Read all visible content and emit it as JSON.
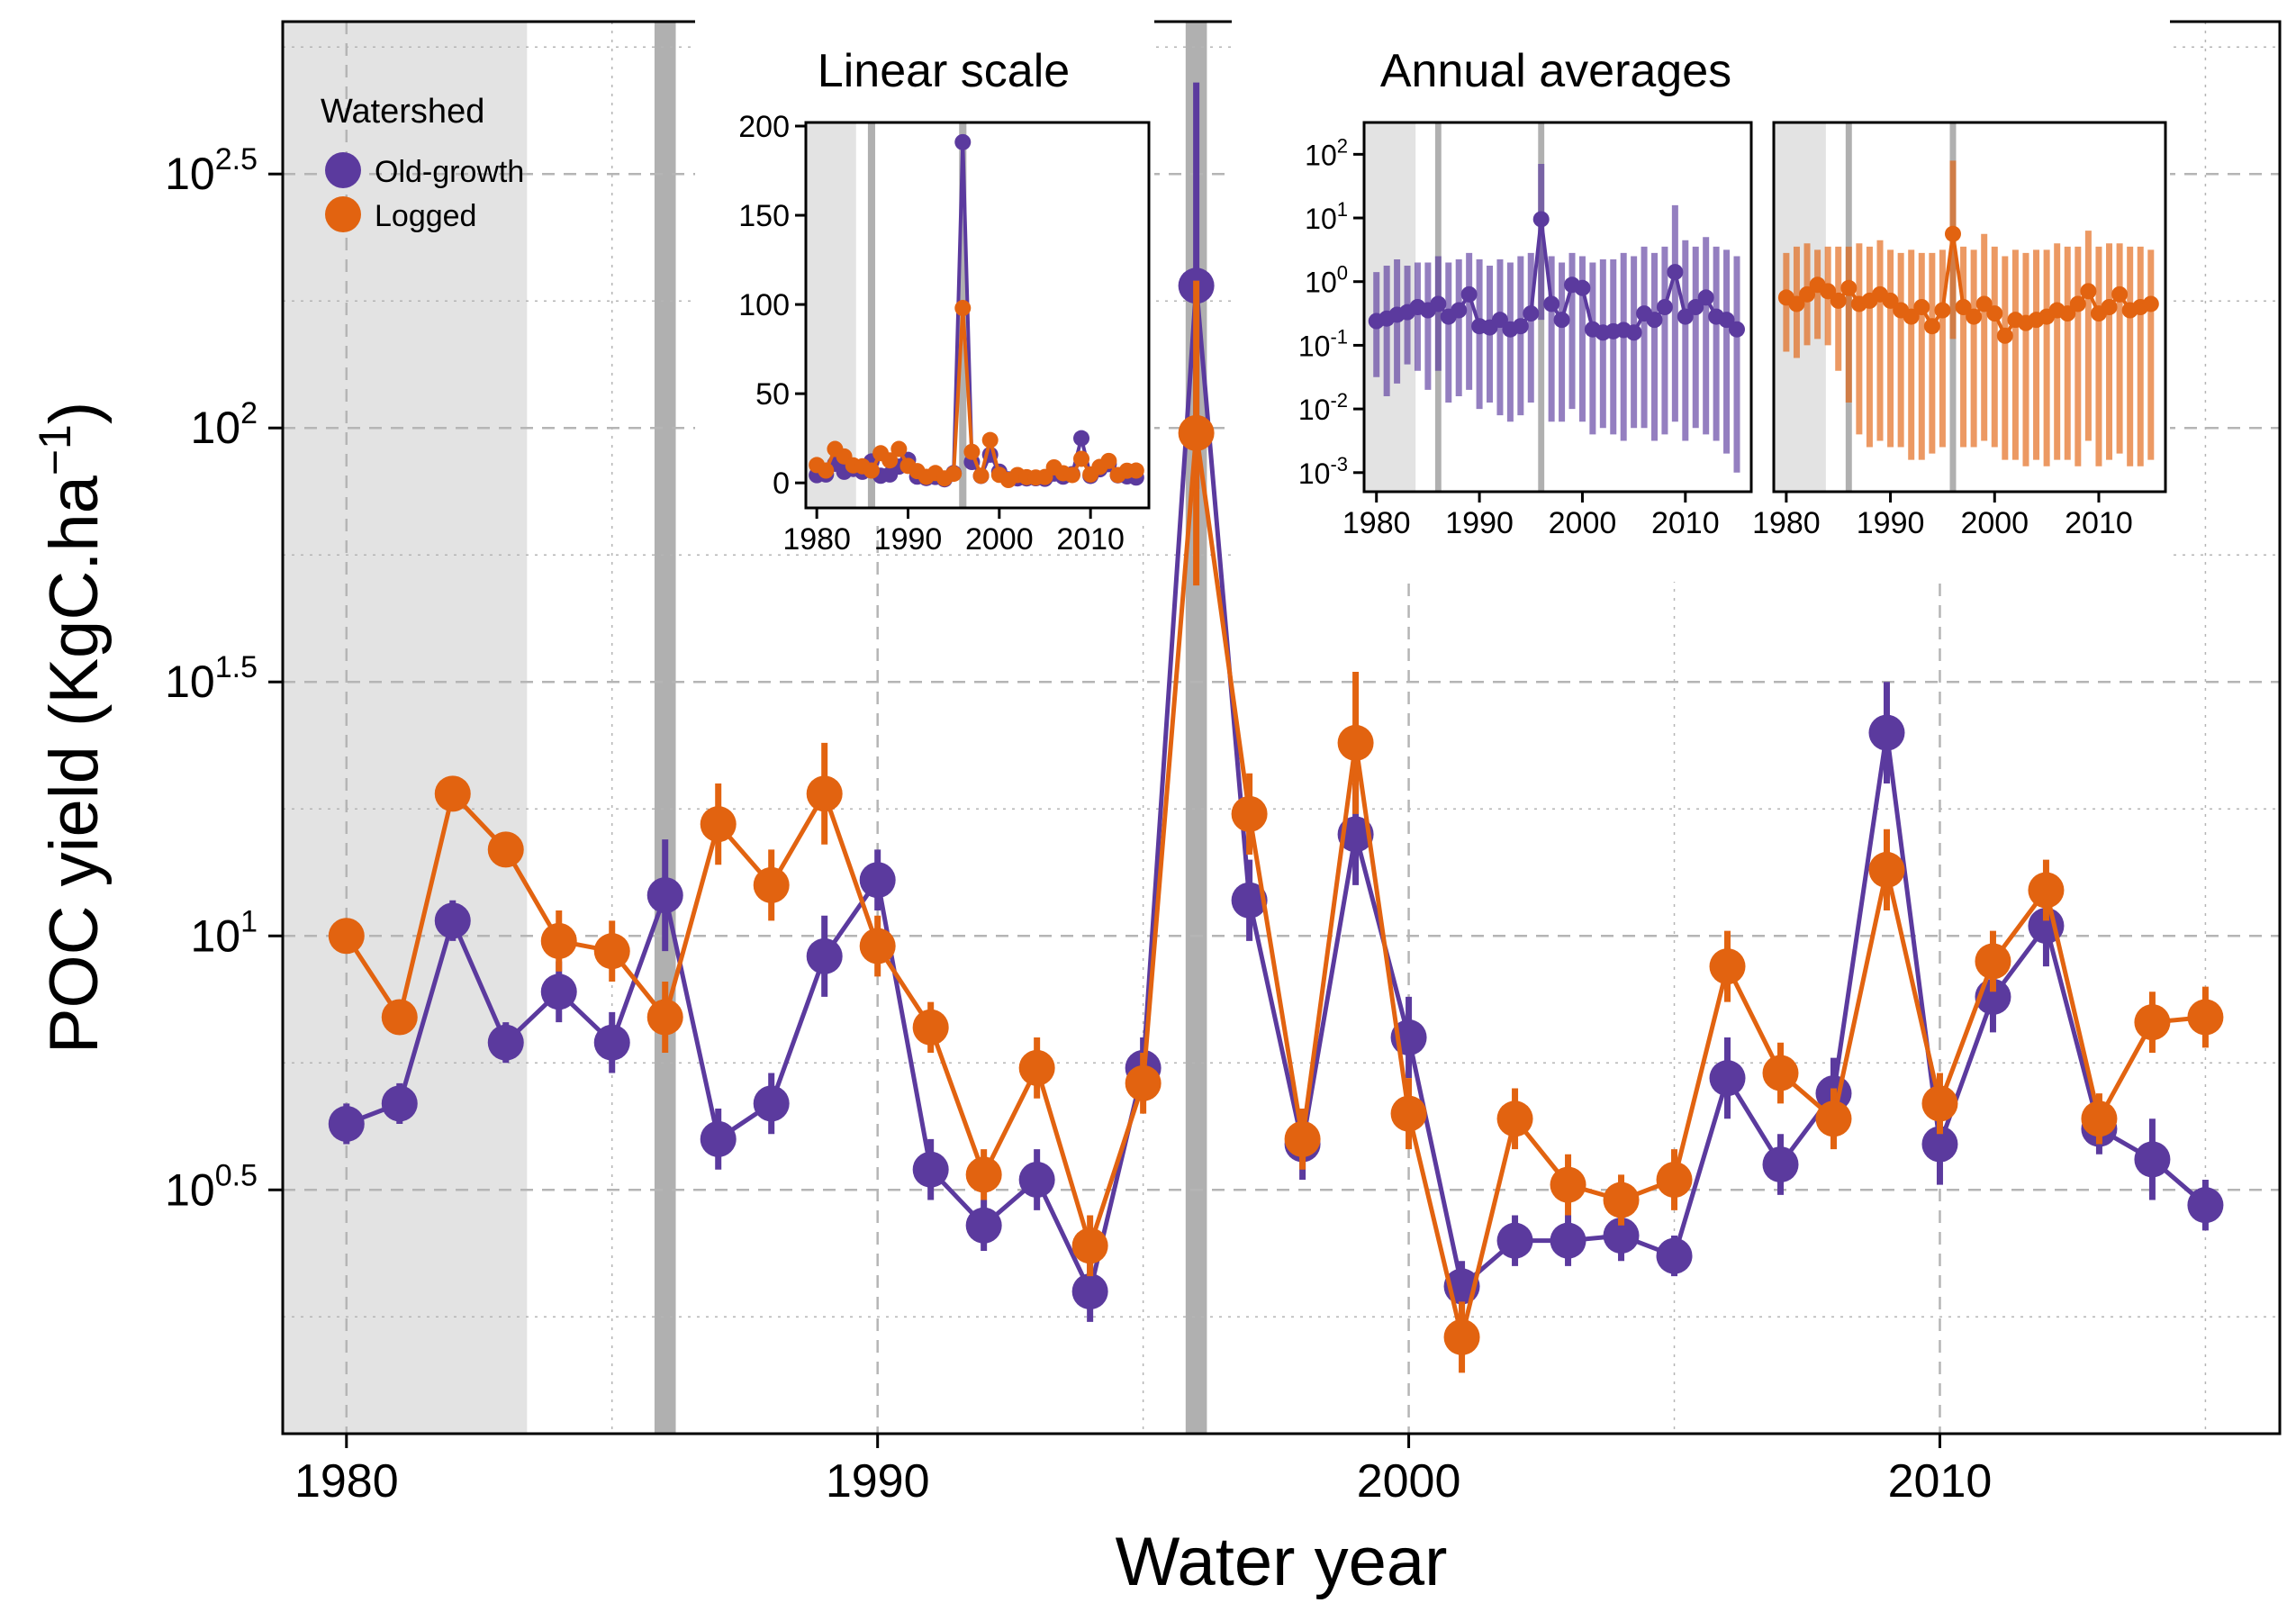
{
  "colors": {
    "old_growth": "#5B3A9E",
    "logged": "#E26310",
    "shade_light": "#E3E3E3",
    "shade_dark": "#B0B0B0",
    "grid": "#B5B5B5"
  },
  "legend": {
    "title": "Watershed",
    "entries": [
      "Old-growth",
      "Logged"
    ]
  },
  "chart_data": [
    {
      "id": "main",
      "type": "line",
      "scale": "log10",
      "xlabel": "Water year",
      "ylabel": "POC yield (KgC.ha",
      "ylabel_sup": "−1",
      "ylabel_close": ")",
      "xlim": [
        1978.8,
        2016.4
      ],
      "ylim": [
        0.02,
        2.8
      ],
      "xticks": [
        1980,
        1990,
        2000,
        2010
      ],
      "xtick_labels": [
        "1980",
        "1990",
        "2000",
        "2010"
      ],
      "yticks": [
        0.5,
        1,
        1.5,
        2,
        2.5
      ],
      "ytick_labels": [
        {
          "base": "10",
          "exp": "0.5"
        },
        {
          "base": "10",
          "exp": "1"
        },
        {
          "base": "10",
          "exp": "1.5"
        },
        {
          "base": "10",
          "exp": "2"
        },
        {
          "base": "10",
          "exp": "2.5"
        }
      ],
      "shaded_ranges": [
        {
          "from": 1978.8,
          "to": 1983.4,
          "tone": "light"
        },
        {
          "from": 1985.8,
          "to": 1986.2,
          "tone": "dark"
        },
        {
          "from": 1995.8,
          "to": 1996.2,
          "tone": "dark"
        }
      ],
      "x": [
        1980,
        1981,
        1982,
        1983,
        1984,
        1985,
        1986,
        1987,
        1988,
        1989,
        1990,
        1991,
        1992,
        1993,
        1994,
        1995,
        1996,
        1997,
        1998,
        1999,
        2000,
        2001,
        2002,
        2003,
        2004,
        2005,
        2006,
        2007,
        2008,
        2009,
        2010,
        2011,
        2012,
        2013,
        2014,
        2015
      ],
      "series": [
        {
          "name": "Old-growth",
          "values": [
            0.63,
            0.67,
            1.03,
            0.79,
            0.89,
            0.79,
            1.08,
            0.6,
            0.67,
            0.96,
            1.11,
            0.54,
            0.43,
            0.52,
            0.3,
            0.74,
            2.28,
            1.07,
            0.59,
            1.2,
            0.8,
            0.31,
            0.4,
            0.4,
            0.41,
            0.37,
            0.72,
            0.55,
            0.69,
            1.4,
            0.59,
            0.88,
            1.02,
            0.62,
            0.56,
            0.47
          ],
          "err": [
            0.04,
            0.04,
            0.04,
            0.04,
            0.06,
            0.06,
            0.11,
            0.06,
            0.06,
            0.08,
            0.06,
            0.06,
            0.05,
            0.06,
            0.06,
            0.06,
            0.4,
            0.08,
            0.07,
            0.1,
            0.08,
            0.05,
            0.05,
            0.05,
            0.05,
            0.04,
            0.08,
            0.06,
            0.07,
            0.1,
            0.08,
            0.07,
            0.08,
            0.05,
            0.08,
            0.05
          ]
        },
        {
          "name": "Logged",
          "values": [
            1.0,
            0.84,
            1.28,
            1.17,
            0.99,
            0.97,
            0.84,
            1.22,
            1.1,
            1.28,
            0.98,
            0.82,
            0.53,
            0.74,
            0.39,
            0.71,
            1.99,
            1.24,
            0.6,
            1.38,
            0.65,
            0.21,
            0.64,
            0.51,
            0.48,
            0.52,
            0.94,
            0.73,
            0.64,
            1.13,
            0.67,
            0.95,
            1.09,
            0.64,
            0.83,
            0.84
          ],
          "err": [
            0.02,
            0.02,
            0.03,
            0.03,
            0.06,
            0.06,
            0.07,
            0.08,
            0.07,
            0.1,
            0.06,
            0.05,
            0.05,
            0.06,
            0.06,
            0.06,
            0.3,
            0.08,
            0.06,
            0.14,
            0.07,
            0.07,
            0.06,
            0.06,
            0.05,
            0.06,
            0.07,
            0.06,
            0.06,
            0.08,
            0.06,
            0.06,
            0.06,
            0.05,
            0.06,
            0.06
          ]
        }
      ]
    },
    {
      "id": "inset_linear",
      "type": "line",
      "title": "Linear scale",
      "scale": "linear",
      "xlim": [
        1978.8,
        2016.4
      ],
      "ylim": [
        -10,
        200
      ],
      "xticks": [
        1980,
        1990,
        2000,
        2010
      ],
      "xtick_labels": [
        "1980",
        "1990",
        "2000",
        "2010"
      ],
      "yticks": [
        0,
        50,
        100,
        150,
        200
      ],
      "ytick_labels": [
        "0",
        "50",
        "100",
        "150",
        "200"
      ],
      "shaded_ranges": [
        {
          "from": 1978.8,
          "to": 1984.3,
          "tone": "light"
        },
        {
          "from": 1985.6,
          "to": 1986.4,
          "tone": "dark"
        },
        {
          "from": 1995.6,
          "to": 1996.4,
          "tone": "dark"
        }
      ],
      "x": [
        1980,
        1981,
        1982,
        1983,
        1984,
        1985,
        1986,
        1987,
        1988,
        1989,
        1990,
        1991,
        1992,
        1993,
        1994,
        1995,
        1996,
        1997,
        1998,
        1999,
        2000,
        2001,
        2002,
        2003,
        2004,
        2005,
        2006,
        2007,
        2008,
        2009,
        2010,
        2011,
        2012,
        2013,
        2014,
        2015
      ],
      "series": [
        {
          "name": "Old-growth",
          "values": [
            4.3,
            4.7,
            10.7,
            6.2,
            7.8,
            6.2,
            12,
            4,
            4.7,
            9.1,
            12.9,
            3.5,
            2.7,
            3.3,
            2,
            5.5,
            191,
            11.7,
            3.9,
            15.8,
            6.3,
            2,
            2.5,
            2.5,
            2.6,
            2.3,
            5.2,
            3.5,
            4.9,
            25,
            3.9,
            7.6,
            10.5,
            4.2,
            3.6,
            3
          ]
        },
        {
          "name": "Logged",
          "values": [
            10,
            6.9,
            19,
            14.8,
            9.8,
            9.3,
            6.9,
            16.6,
            12.6,
            19,
            9.5,
            6.6,
            3.4,
            5.5,
            2.5,
            5.1,
            98,
            17.4,
            4,
            24,
            4.5,
            1.6,
            4.4,
            3.2,
            3,
            3.3,
            8.7,
            5.4,
            4.4,
            13.5,
            4.7,
            8.9,
            12.3,
            4.4,
            6.8,
            6.9
          ]
        }
      ]
    },
    {
      "id": "inset_annual_old_growth",
      "type": "line",
      "title": "Annual averages",
      "scale": "log10",
      "xlim": [
        1978.8,
        2016.4
      ],
      "ylim": [
        -3.3,
        2.5
      ],
      "xticks": [
        1980,
        1990,
        2000,
        2010
      ],
      "xtick_labels": [
        "1980",
        "1990",
        "2000",
        "2010"
      ],
      "yticks": [
        -3,
        -2,
        -1,
        0,
        1,
        2
      ],
      "ytick_labels": [
        {
          "base": "10",
          "exp": "-3"
        },
        {
          "base": "10",
          "exp": "-2"
        },
        {
          "base": "10",
          "exp": "-1"
        },
        {
          "base": "10",
          "exp": "0"
        },
        {
          "base": "10",
          "exp": "1"
        },
        {
          "base": "10",
          "exp": "2"
        }
      ],
      "shaded_ranges": [
        {
          "from": 1978.8,
          "to": 1983.8,
          "tone": "light"
        },
        {
          "from": 1985.7,
          "to": 1986.3,
          "tone": "dark"
        },
        {
          "from": 1995.7,
          "to": 1996.3,
          "tone": "dark"
        }
      ],
      "x": [
        1980,
        1981,
        1982,
        1983,
        1984,
        1985,
        1986,
        1987,
        1988,
        1989,
        1990,
        1991,
        1992,
        1993,
        1994,
        1995,
        1996,
        1997,
        1998,
        1999,
        2000,
        2001,
        2002,
        2003,
        2004,
        2005,
        2006,
        2007,
        2008,
        2009,
        2010,
        2011,
        2012,
        2013,
        2014,
        2015
      ],
      "series": [
        {
          "name": "Old-growth",
          "values": [
            -0.62,
            -0.58,
            -0.52,
            -0.48,
            -0.4,
            -0.45,
            -0.35,
            -0.55,
            -0.45,
            -0.2,
            -0.7,
            -0.72,
            -0.6,
            -0.75,
            -0.7,
            -0.5,
            0.98,
            -0.35,
            -0.6,
            -0.05,
            -0.1,
            -0.75,
            -0.8,
            -0.78,
            -0.76,
            -0.8,
            -0.5,
            -0.6,
            -0.4,
            0.15,
            -0.55,
            -0.4,
            -0.25,
            -0.55,
            -0.6,
            -0.75
          ],
          "lower": [
            -1.5,
            -1.8,
            -1.6,
            -1.3,
            -1.4,
            -1.7,
            -1.4,
            -1.9,
            -1.8,
            -1.7,
            -2.0,
            -1.9,
            -2.1,
            -2.2,
            -2.1,
            -1.9,
            -0.6,
            -2.2,
            -2.2,
            -2.0,
            -2.2,
            -2.4,
            -2.3,
            -2.4,
            -2.5,
            -2.3,
            -2.3,
            -2.5,
            -2.4,
            -2.2,
            -2.5,
            -2.3,
            -2.4,
            -2.5,
            -2.7,
            -3.0
          ],
          "upper": [
            0.15,
            0.25,
            0.35,
            0.25,
            0.3,
            0.3,
            0.4,
            0.3,
            0.35,
            0.45,
            0.35,
            0.25,
            0.35,
            0.3,
            0.4,
            0.45,
            1.85,
            0.4,
            0.3,
            0.45,
            0.4,
            0.3,
            0.35,
            0.35,
            0.45,
            0.4,
            0.55,
            0.45,
            0.55,
            1.2,
            0.65,
            0.55,
            0.7,
            0.55,
            0.5,
            0.4
          ]
        }
      ]
    },
    {
      "id": "inset_annual_logged",
      "type": "line",
      "scale": "log10",
      "xlim": [
        1978.8,
        2016.4
      ],
      "ylim": [
        -3.3,
        2.5
      ],
      "xticks": [
        1980,
        1990,
        2000,
        2010
      ],
      "xtick_labels": [
        "1980",
        "1990",
        "2000",
        "2010"
      ],
      "shaded_ranges": [
        {
          "from": 1978.8,
          "to": 1983.8,
          "tone": "light"
        },
        {
          "from": 1985.7,
          "to": 1986.3,
          "tone": "dark"
        },
        {
          "from": 1995.7,
          "to": 1996.3,
          "tone": "dark"
        }
      ],
      "x": [
        1980,
        1981,
        1982,
        1983,
        1984,
        1985,
        1986,
        1987,
        1988,
        1989,
        1990,
        1991,
        1992,
        1993,
        1994,
        1995,
        1996,
        1997,
        1998,
        1999,
        2000,
        2001,
        2002,
        2003,
        2004,
        2005,
        2006,
        2007,
        2008,
        2009,
        2010,
        2011,
        2012,
        2013,
        2014,
        2015
      ],
      "series": [
        {
          "name": "Logged",
          "values": [
            -0.25,
            -0.35,
            -0.2,
            -0.05,
            -0.15,
            -0.3,
            -0.1,
            -0.35,
            -0.3,
            -0.2,
            -0.3,
            -0.45,
            -0.55,
            -0.4,
            -0.7,
            -0.45,
            0.75,
            -0.4,
            -0.55,
            -0.35,
            -0.5,
            -0.85,
            -0.6,
            -0.65,
            -0.6,
            -0.55,
            -0.45,
            -0.5,
            -0.35,
            -0.15,
            -0.5,
            -0.4,
            -0.2,
            -0.45,
            -0.4,
            -0.35
          ],
          "lower": [
            -1.1,
            -1.2,
            -1.0,
            -0.9,
            -1.0,
            -1.4,
            -1.9,
            -2.4,
            -2.6,
            -2.5,
            -2.6,
            -2.6,
            -2.8,
            -2.8,
            -2.7,
            -2.6,
            -0.9,
            -2.6,
            -2.6,
            -2.5,
            -2.6,
            -2.8,
            -2.8,
            -2.9,
            -2.8,
            -2.9,
            -2.8,
            -2.8,
            -2.9,
            -2.5,
            -2.9,
            -2.8,
            -2.7,
            -2.9,
            -2.9,
            -2.8
          ],
          "upper": [
            0.45,
            0.55,
            0.6,
            0.5,
            0.55,
            0.55,
            0.55,
            0.6,
            0.55,
            0.65,
            0.5,
            0.45,
            0.5,
            0.45,
            0.45,
            0.5,
            1.9,
            0.55,
            0.5,
            0.75,
            0.55,
            0.4,
            0.5,
            0.45,
            0.5,
            0.5,
            0.6,
            0.55,
            0.55,
            0.8,
            0.55,
            0.6,
            0.6,
            0.55,
            0.55,
            0.5
          ]
        }
      ]
    }
  ]
}
